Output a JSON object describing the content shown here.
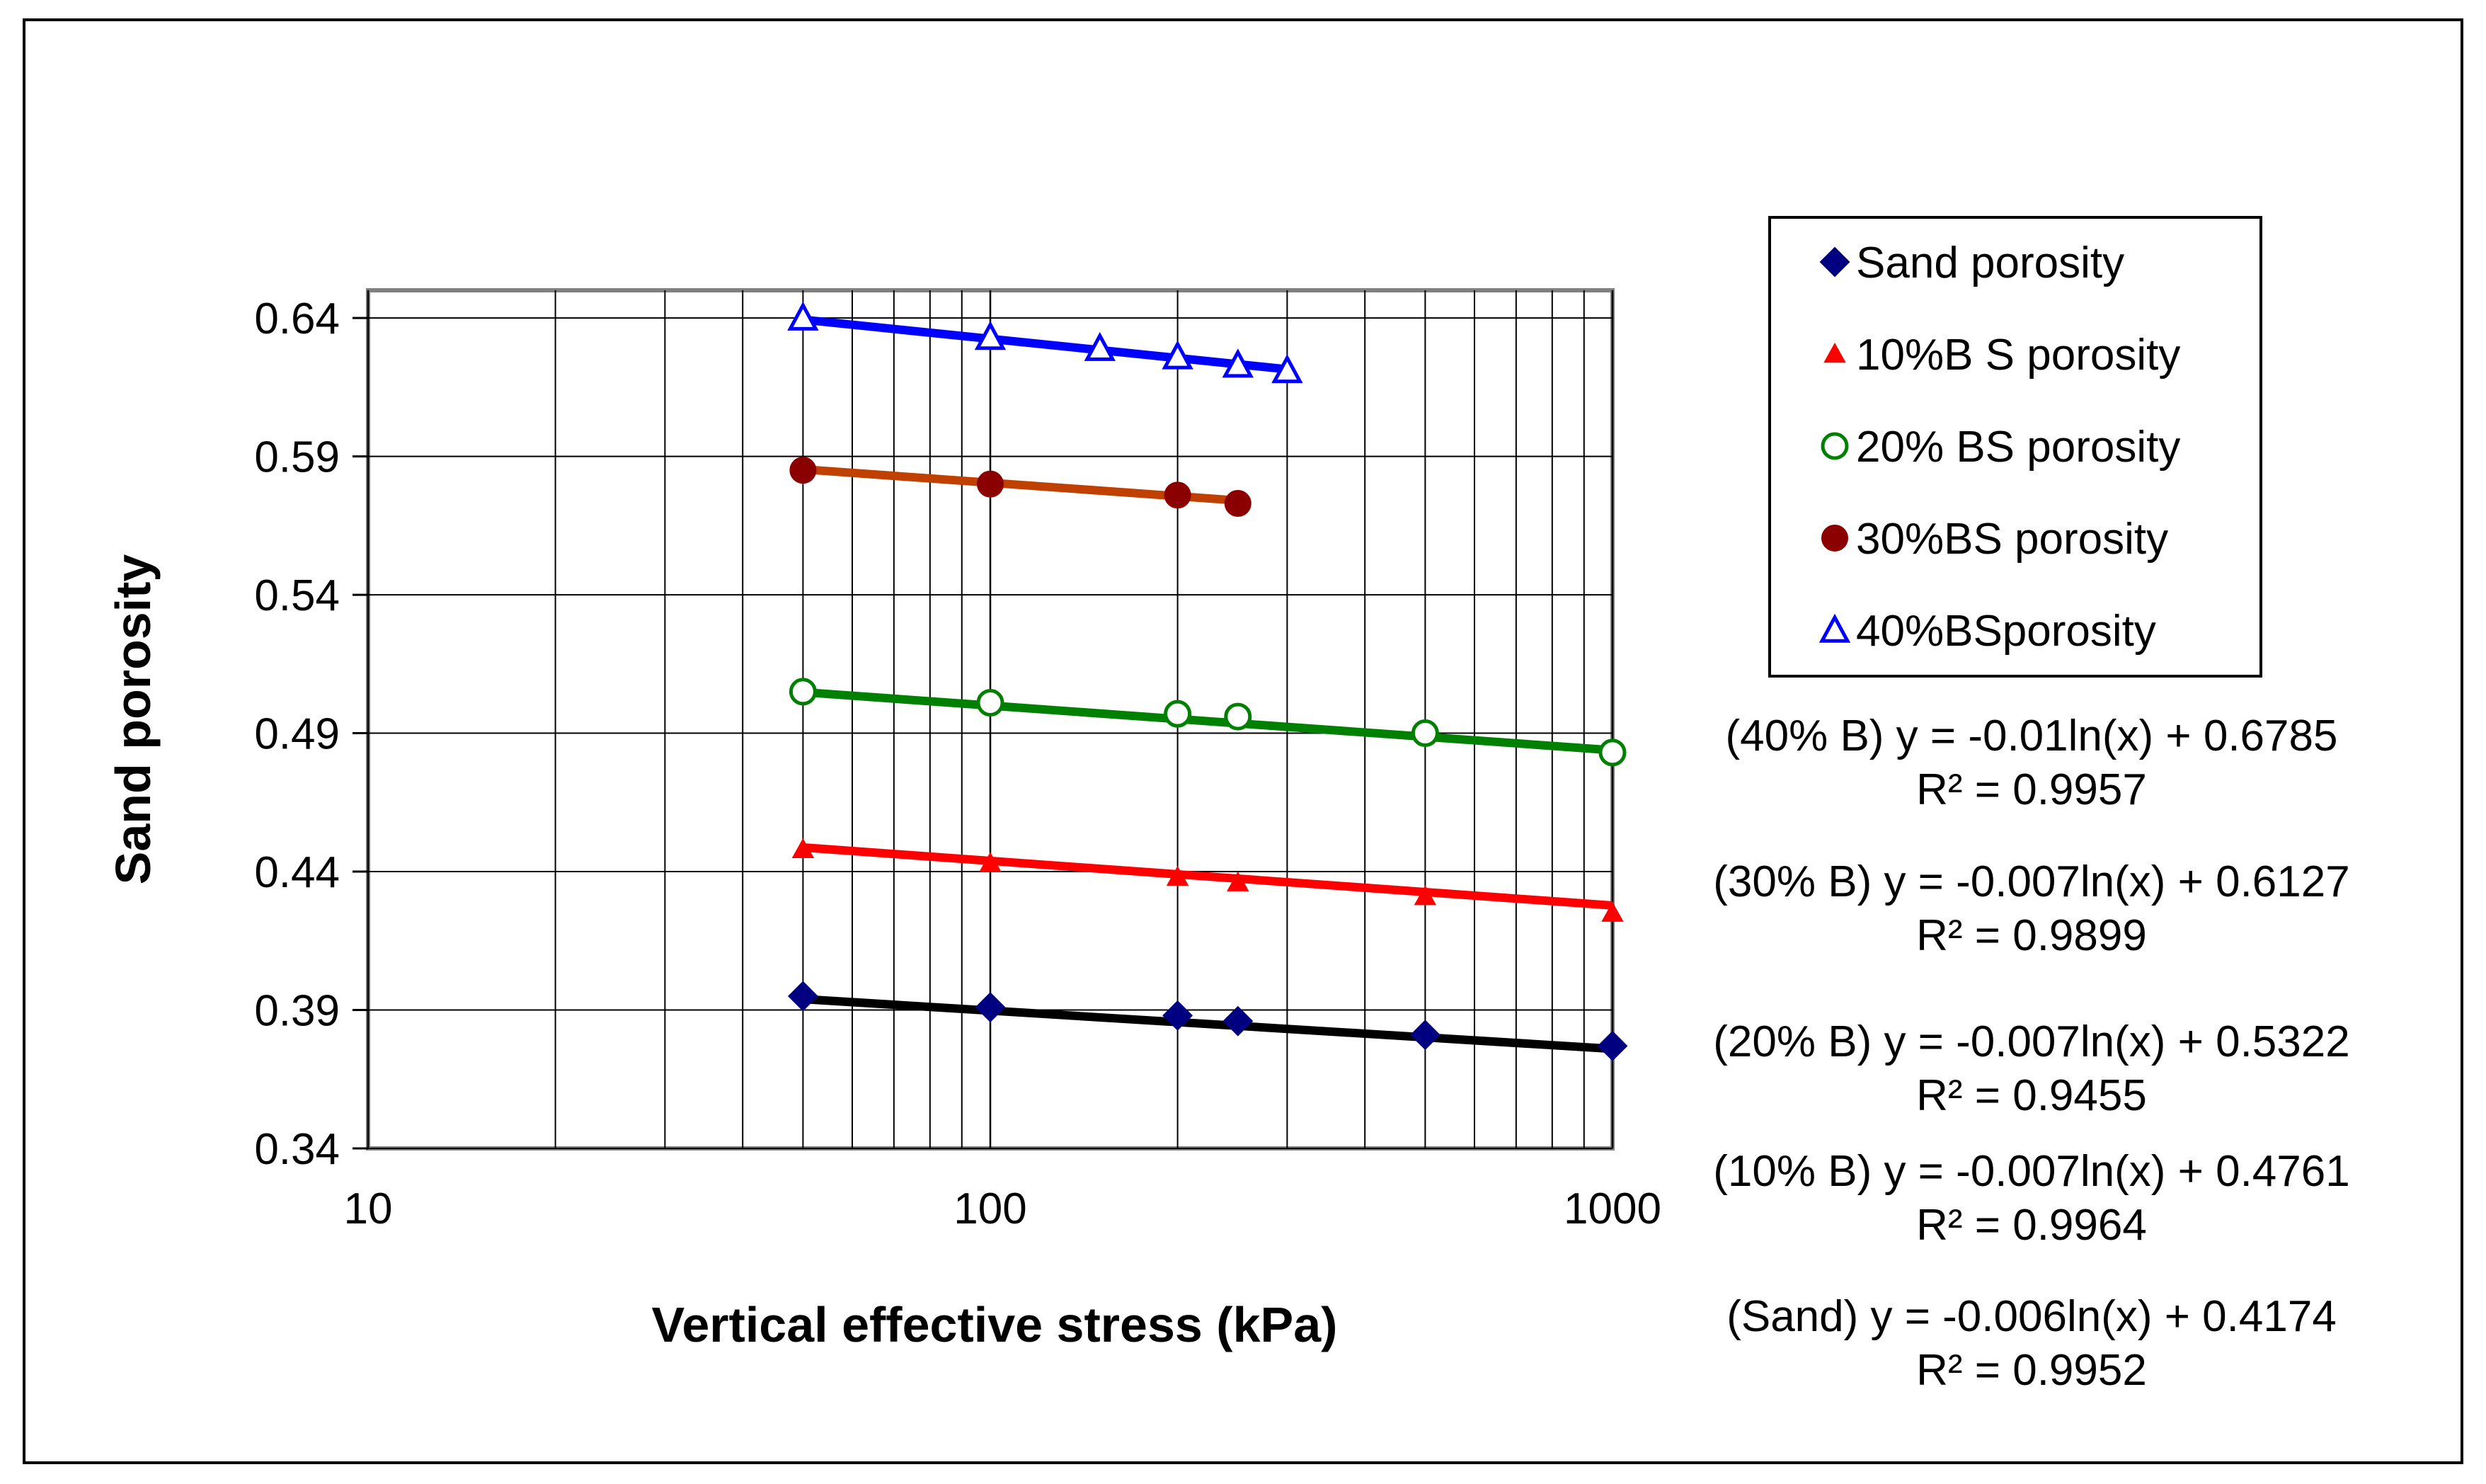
{
  "chart_data": {
    "type": "scatter",
    "x_scale": "log",
    "xlabel": "Vertical effective stress (kPa)",
    "ylabel": "Sand porosity",
    "xlim": [
      10,
      1000
    ],
    "ylim": [
      0.34,
      0.65
    ],
    "x_ticks": [
      {
        "value": 10,
        "label": "10"
      },
      {
        "value": 100,
        "label": "100"
      },
      {
        "value": 1000,
        "label": "1000"
      }
    ],
    "y_ticks": [
      {
        "value": 0.34,
        "label": "0.34"
      },
      {
        "value": 0.39,
        "label": "0.39"
      },
      {
        "value": 0.44,
        "label": "0.44"
      },
      {
        "value": 0.49,
        "label": "0.49"
      },
      {
        "value": 0.54,
        "label": "0.54"
      },
      {
        "value": 0.59,
        "label": "0.59"
      },
      {
        "value": 0.64,
        "label": "0.64"
      }
    ],
    "grid": "major y, major and minor x",
    "series": [
      {
        "key": "sand",
        "name": "Sand porosity",
        "marker": "diamond",
        "marker_color": "#000080",
        "trend_color": "#000000",
        "x": [
          50,
          100,
          200,
          250,
          500,
          1000
        ],
        "y": [
          0.395,
          0.391,
          0.388,
          0.386,
          0.381,
          0.377
        ],
        "trend": {
          "a": -0.006,
          "b": 0.4174
        },
        "trend_range": [
          50,
          1000
        ]
      },
      {
        "key": "b10",
        "name": "10%B S porosity",
        "marker": "triangle-filled",
        "marker_color": "#ff0000",
        "trend_color": "#ff0000",
        "x": [
          50,
          100,
          200,
          250,
          500,
          1000
        ],
        "y": [
          0.448,
          0.443,
          0.438,
          0.436,
          0.431,
          0.425
        ],
        "trend": {
          "a": -0.007,
          "b": 0.4761
        },
        "trend_range": [
          50,
          1000
        ]
      },
      {
        "key": "b20",
        "name": "20% BS porosity",
        "marker": "circle-open",
        "marker_color": "#008000",
        "trend_color": "#008000",
        "x": [
          50,
          100,
          200,
          250,
          500,
          1000
        ],
        "y": [
          0.505,
          0.501,
          0.497,
          0.496,
          0.49,
          0.483
        ],
        "trend": {
          "a": -0.007,
          "b": 0.5322
        },
        "trend_range": [
          50,
          1000
        ]
      },
      {
        "key": "b30",
        "name": "30%BS porosity",
        "marker": "circle-filled",
        "marker_color": "#8b0000",
        "trend_color": "#c04000",
        "x": [
          50,
          100,
          200,
          250
        ],
        "y": [
          0.585,
          0.58,
          0.576,
          0.573
        ],
        "trend": {
          "a": -0.007,
          "b": 0.6127
        },
        "trend_range": [
          50,
          250
        ]
      },
      {
        "key": "b40",
        "name": "40%BSporosity",
        "marker": "triangle-open",
        "marker_color": "#0000ff",
        "trend_color": "#0000ff",
        "x": [
          50,
          100,
          150,
          200,
          250,
          300
        ],
        "y": [
          0.64,
          0.633,
          0.629,
          0.626,
          0.623,
          0.621
        ],
        "trend": {
          "a": -0.01,
          "b": 0.6785
        },
        "trend_range": [
          50,
          300
        ]
      }
    ],
    "equations": [
      {
        "line1": "(40% B) y = -0.01ln(x) + 0.6785",
        "line2": "R² = 0.9957"
      },
      {
        "line1": "(30% B) y = -0.007ln(x) + 0.6127",
        "line2": "R² = 0.9899"
      },
      {
        "line1": "(20% B) y = -0.007ln(x) + 0.5322",
        "line2": "R² = 0.9455"
      },
      {
        "line1": "(10% B) y = -0.007ln(x) + 0.4761",
        "line2": "R² = 0.9964"
      },
      {
        "line1": "(Sand) y = -0.006ln(x) + 0.4174",
        "line2": "R² = 0.9952"
      }
    ]
  }
}
